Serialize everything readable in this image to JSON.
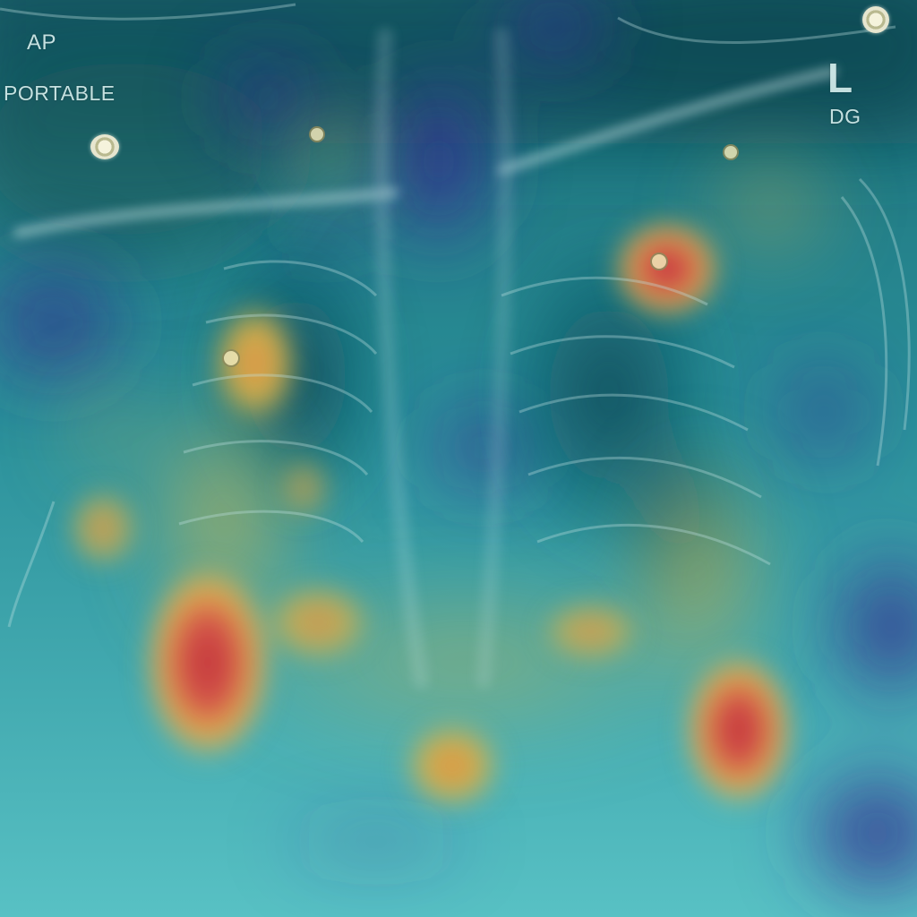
{
  "image": {
    "kind": "chest radiograph with attention heatmap overlay",
    "projection_label": "AP",
    "mode_label": "PORTABLE",
    "side_marker": "L",
    "tech_initials": "DG",
    "colors": {
      "background": "#0b3a4a",
      "overlay_low": "#2a1f7a",
      "overlay_mid": "#3fb6b8",
      "overlay_high": "#c23a32",
      "overlay_warm": "#d4b24a",
      "text": "#d9f0ef"
    }
  }
}
